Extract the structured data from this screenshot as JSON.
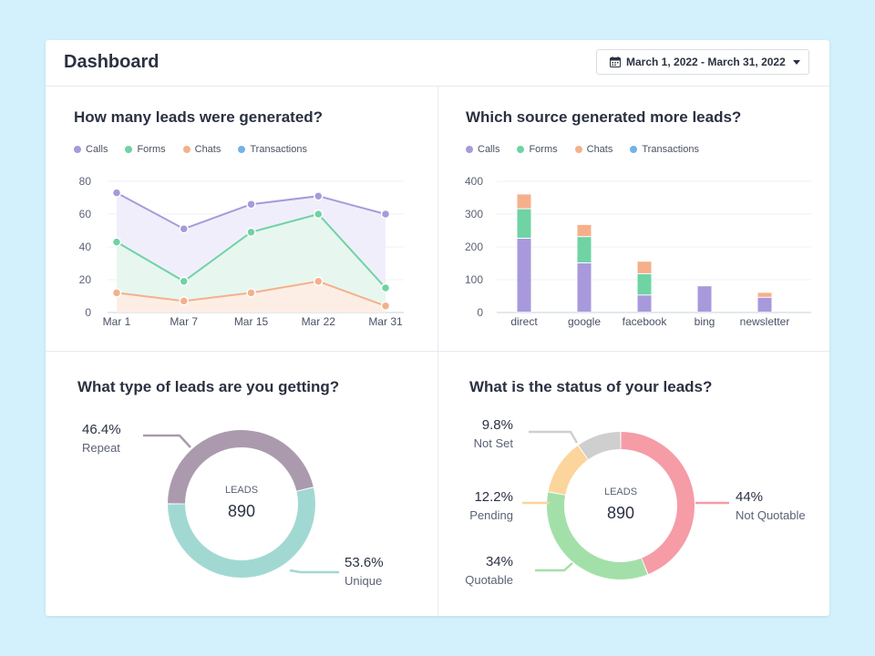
{
  "header": {
    "title": "Dashboard",
    "date_range": "March 1, 2022 - March 31, 2022",
    "calendar_icon": "calendar-icon",
    "caret_icon": "caret-down-icon"
  },
  "legend": [
    {
      "name": "Calls",
      "color": "#a899dc"
    },
    {
      "name": "Forms",
      "color": "#6fd3a4"
    },
    {
      "name": "Chats",
      "color": "#f5b08b"
    },
    {
      "name": "Transactions",
      "color": "#72b3e6"
    }
  ],
  "panels": {
    "leads_over_time": {
      "title": "How many leads were generated?"
    },
    "leads_by_source": {
      "title": "Which source generated more leads?"
    },
    "lead_types": {
      "title": "What type of leads are you getting?"
    },
    "lead_status": {
      "title": "What is the status of your leads?"
    }
  },
  "chart_data": [
    {
      "type": "area",
      "title": "How many leads were generated?",
      "categories": [
        "Mar 1",
        "Mar 7",
        "Mar 15",
        "Mar 22",
        "Mar 31"
      ],
      "ylim": [
        0,
        80
      ],
      "yticks": [
        0,
        20,
        40,
        60,
        80
      ],
      "grid": true,
      "series": [
        {
          "name": "Calls",
          "values": [
            73,
            51,
            66,
            71,
            60
          ],
          "color": "#a899dc",
          "fill": "#f1eefb"
        },
        {
          "name": "Forms",
          "values": [
            43,
            19,
            49,
            60,
            15
          ],
          "color": "#6fd3a4",
          "fill": "#e7f7ef"
        },
        {
          "name": "Chats",
          "values": [
            12,
            7,
            12,
            19,
            4
          ],
          "color": "#f5b08b",
          "fill": "#fdeee5"
        }
      ]
    },
    {
      "type": "bar",
      "title": "Which source generated more leads?",
      "categories": [
        "direct",
        "google",
        "facebook",
        "bing",
        "newsletter"
      ],
      "ylim": [
        0,
        400
      ],
      "yticks": [
        0,
        100,
        200,
        300,
        400
      ],
      "stacked": true,
      "grid": true,
      "series": [
        {
          "name": "Calls",
          "values": [
            225,
            150,
            52,
            80,
            45
          ],
          "color": "#a899dc"
        },
        {
          "name": "Forms",
          "values": [
            90,
            80,
            65,
            0,
            0
          ],
          "color": "#6fd3a4"
        },
        {
          "name": "Chats",
          "values": [
            45,
            37,
            38,
            0,
            15
          ],
          "color": "#f5b08b"
        },
        {
          "name": "Transactions",
          "values": [
            0,
            0,
            0,
            0,
            0
          ],
          "color": "#72b3e6"
        }
      ]
    },
    {
      "type": "pie",
      "title": "What type of leads are you getting?",
      "center_label": "LEADS",
      "center_value": "890",
      "slices": [
        {
          "label": "Repeat",
          "pct_text": "46.4%",
          "value": 46.4,
          "color": "#ab9aad"
        },
        {
          "label": "Unique",
          "pct_text": "53.6%",
          "value": 53.6,
          "color": "#a1d9d2"
        }
      ]
    },
    {
      "type": "pie",
      "title": "What is the status of your leads?",
      "center_label": "LEADS",
      "center_value": "890",
      "slices": [
        {
          "label": "Not Quotable",
          "pct_text": "44%",
          "value": 44,
          "color": "#f59ca7"
        },
        {
          "label": "Quotable",
          "pct_text": "34%",
          "value": 34,
          "color": "#a3e0a9"
        },
        {
          "label": "Pending",
          "pct_text": "12.2%",
          "value": 12.2,
          "color": "#fbd59b"
        },
        {
          "label": "Not Set",
          "pct_text": "9.8%",
          "value": 9.8,
          "color": "#cfcfcf"
        }
      ]
    }
  ]
}
